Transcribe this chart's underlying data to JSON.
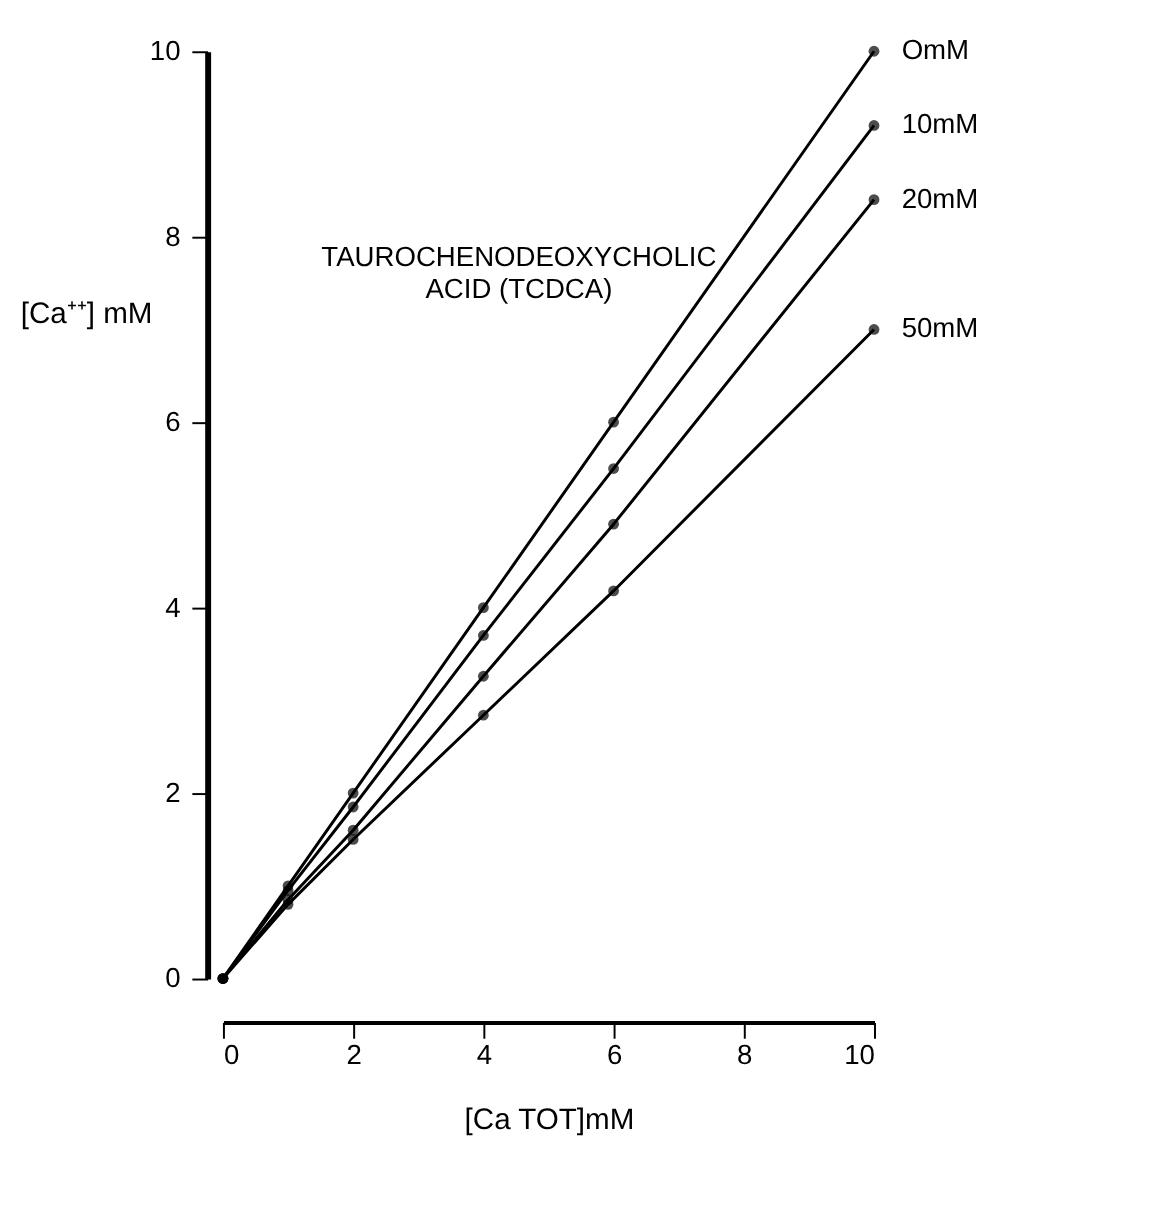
{
  "chart_data": {
    "type": "line",
    "xlabel": "[Ca TOT]mM",
    "ylabel": "[Ca⁺⁺] mM",
    "annotations": [
      "TAUROCHENODEOXYCHOLIC\nACID (TCDCA)"
    ],
    "x": [
      0,
      1,
      2,
      4,
      6,
      10
    ],
    "series": [
      {
        "name": "OmM",
        "color": "#000000",
        "values": [
          0,
          1.0,
          2.0,
          4.0,
          6.0,
          10.0
        ]
      },
      {
        "name": "10mM",
        "color": "#000000",
        "values": [
          0,
          0.95,
          1.85,
          3.7,
          5.5,
          9.2
        ]
      },
      {
        "name": "20mM",
        "color": "#000000",
        "values": [
          0,
          0.85,
          1.6,
          3.26,
          4.9,
          8.4
        ]
      },
      {
        "name": "50mM",
        "color": "#000000",
        "values": [
          0,
          0.8,
          1.5,
          2.84,
          4.18,
          7.0
        ]
      }
    ],
    "xlim": [
      0,
      10
    ],
    "ylim": [
      0,
      10
    ],
    "xticks": [
      0,
      2,
      4,
      6,
      8,
      10
    ],
    "yticks": [
      0,
      2,
      4,
      6,
      8,
      10
    ],
    "grid": false,
    "legend": false,
    "marker": "circle",
    "line_style": "solid"
  }
}
